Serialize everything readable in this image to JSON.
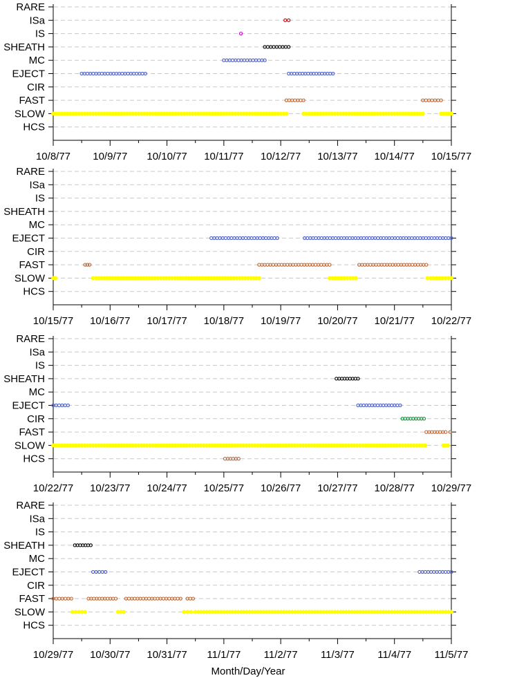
{
  "chart_data": {
    "type": "scatter",
    "xlabel": "Month/Day/Year",
    "categories": [
      "RARE",
      "ISa",
      "IS",
      "SHEATH",
      "MC",
      "EJECT",
      "CIR",
      "FAST",
      "SLOW",
      "HCS"
    ],
    "colors": {
      "RARE": "#000000",
      "ISa": "#cc0000",
      "IS": "#cc00cc",
      "SHEATH": "#000000",
      "MC": "#4a5fc8",
      "EJECT": "#4a5fc8",
      "CIR": "#009933",
      "FAST": "#c0622b",
      "SLOW": "#ffff00",
      "HCS": "#c0622b"
    },
    "panels": [
      {
        "x_ticks": [
          "10/8/77",
          "10/9/77",
          "10/10/77",
          "10/11/77",
          "10/12/77",
          "10/13/77",
          "10/14/77",
          "10/15/77"
        ],
        "xlim": [
          0,
          7
        ],
        "intervals": [
          {
            "category": "ISa",
            "start": 4.08,
            "end": 4.14
          },
          {
            "category": "IS",
            "start": 3.3,
            "end": 3.3
          },
          {
            "category": "SHEATH",
            "start": 3.72,
            "end": 4.14
          },
          {
            "category": "MC",
            "start": 3.0,
            "end": 3.72
          },
          {
            "category": "EJECT",
            "start": 0.5,
            "end": 1.62
          },
          {
            "category": "EJECT",
            "start": 4.14,
            "end": 4.92
          },
          {
            "category": "FAST",
            "start": 4.1,
            "end": 4.4
          },
          {
            "category": "FAST",
            "start": 6.5,
            "end": 6.82
          },
          {
            "category": "SLOW",
            "start": 0.0,
            "end": 4.1
          },
          {
            "category": "SLOW",
            "start": 4.4,
            "end": 6.5
          },
          {
            "category": "SLOW",
            "start": 6.82,
            "end": 7.0
          }
        ]
      },
      {
        "x_ticks": [
          "10/15/77",
          "10/16/77",
          "10/17/77",
          "10/18/77",
          "10/19/77",
          "10/20/77",
          "10/21/77",
          "10/22/77"
        ],
        "xlim": [
          0,
          7
        ],
        "intervals": [
          {
            "category": "EJECT",
            "start": 2.78,
            "end": 3.94
          },
          {
            "category": "EJECT",
            "start": 4.42,
            "end": 7.0
          },
          {
            "category": "FAST",
            "start": 0.56,
            "end": 0.64
          },
          {
            "category": "FAST",
            "start": 3.62,
            "end": 4.86
          },
          {
            "category": "FAST",
            "start": 5.38,
            "end": 6.56
          },
          {
            "category": "SLOW",
            "start": 0.0,
            "end": 0.04
          },
          {
            "category": "SLOW",
            "start": 0.7,
            "end": 3.62
          },
          {
            "category": "SLOW",
            "start": 4.86,
            "end": 5.32
          },
          {
            "category": "SLOW",
            "start": 6.58,
            "end": 7.0
          }
        ]
      },
      {
        "x_ticks": [
          "10/22/77",
          "10/23/77",
          "10/24/77",
          "10/25/77",
          "10/26/77",
          "10/27/77",
          "10/28/77",
          "10/29/77"
        ],
        "xlim": [
          0,
          7
        ],
        "intervals": [
          {
            "category": "SHEATH",
            "start": 4.98,
            "end": 5.36
          },
          {
            "category": "EJECT",
            "start": 0.0,
            "end": 0.26
          },
          {
            "category": "EJECT",
            "start": 5.36,
            "end": 6.1
          },
          {
            "category": "CIR",
            "start": 6.14,
            "end": 6.52
          },
          {
            "category": "FAST",
            "start": 6.56,
            "end": 6.9
          },
          {
            "category": "FAST",
            "start": 6.98,
            "end": 7.0
          },
          {
            "category": "SLOW",
            "start": 0.0,
            "end": 6.54
          },
          {
            "category": "SLOW",
            "start": 6.86,
            "end": 6.94
          },
          {
            "category": "HCS",
            "start": 3.02,
            "end": 3.26
          }
        ]
      },
      {
        "x_ticks": [
          "10/29/77",
          "10/30/77",
          "10/31/77",
          "11/1/77",
          "11/2/77",
          "11/3/77",
          "11/4/77",
          "11/5/77"
        ],
        "xlim": [
          0,
          7
        ],
        "intervals": [
          {
            "category": "SHEATH",
            "start": 0.38,
            "end": 0.66
          },
          {
            "category": "EJECT",
            "start": 0.7,
            "end": 0.92
          },
          {
            "category": "EJECT",
            "start": 6.44,
            "end": 7.0
          },
          {
            "category": "FAST",
            "start": 0.0,
            "end": 0.32
          },
          {
            "category": "FAST",
            "start": 0.62,
            "end": 1.1
          },
          {
            "category": "FAST",
            "start": 1.28,
            "end": 2.24
          },
          {
            "category": "FAST",
            "start": 2.36,
            "end": 2.46
          },
          {
            "category": "SLOW",
            "start": 0.34,
            "end": 0.56
          },
          {
            "category": "SLOW",
            "start": 1.14,
            "end": 1.24
          },
          {
            "category": "SLOW",
            "start": 2.3,
            "end": 2.42
          },
          {
            "category": "SLOW",
            "start": 2.5,
            "end": 7.0
          }
        ]
      }
    ]
  }
}
